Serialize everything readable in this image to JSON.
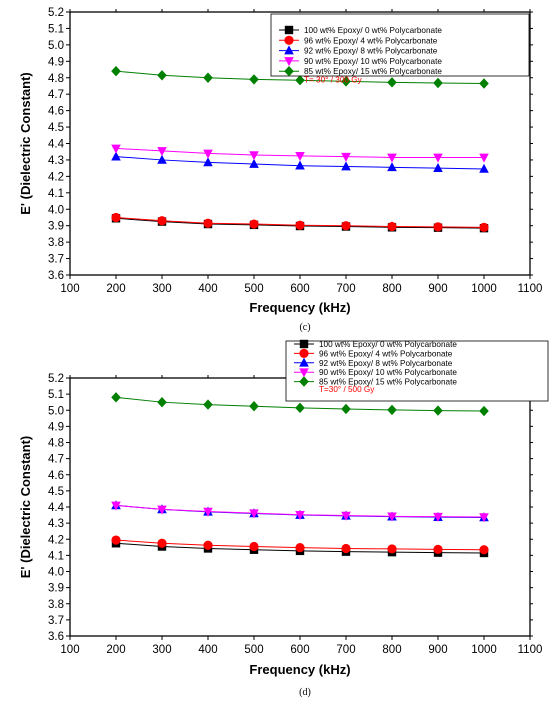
{
  "chart_data": [
    {
      "type": "line",
      "panel_label": "(c)",
      "xlabel": "Frequency (kHz)",
      "ylabel": "E' (Dielectric Constant)",
      "xlim": [
        100,
        1100
      ],
      "ylim": [
        3.6,
        5.2
      ],
      "xticks": [
        "100",
        "200",
        "300",
        "400",
        "500",
        "600",
        "700",
        "800",
        "900",
        "1000",
        "1100"
      ],
      "yticks": [
        "3.6",
        "3.7",
        "3.8",
        "3.9",
        "4.0",
        "4.1",
        "4.2",
        "4.3",
        "4.4",
        "4.5",
        "4.6",
        "4.7",
        "4.8",
        "4.9",
        "5.0",
        "5.1",
        "5.2"
      ],
      "annotation": "T= 30° / 300 Gy",
      "legend_position": "top-right",
      "grid": false,
      "x": [
        200,
        300,
        400,
        500,
        600,
        700,
        800,
        900,
        1000
      ],
      "series": [
        {
          "name": "100 wt% Epoxy/ 0 wt% Polycarbonate",
          "color": "#000000",
          "marker": "square",
          "values": [
            3.945,
            3.925,
            3.91,
            3.905,
            3.898,
            3.895,
            3.89,
            3.888,
            3.885
          ]
        },
        {
          "name": "96 wt% Epoxy/ 4 wt% Polycarbonate",
          "color": "#ff0000",
          "marker": "circle",
          "values": [
            3.95,
            3.93,
            3.915,
            3.91,
            3.903,
            3.9,
            3.895,
            3.893,
            3.89
          ]
        },
        {
          "name": "92 wt% Epoxy/ 8 wt% Polycarbonate",
          "color": "#0000ff",
          "marker": "triangle-up",
          "values": [
            4.32,
            4.3,
            4.285,
            4.275,
            4.265,
            4.26,
            4.255,
            4.25,
            4.245
          ]
        },
        {
          "name": "90 wt% Epoxy/ 10 wt% Polycarbonate",
          "color": "#ff00ff",
          "marker": "triangle-down",
          "values": [
            4.37,
            4.355,
            4.34,
            4.33,
            4.325,
            4.32,
            4.315,
            4.315,
            4.315
          ]
        },
        {
          "name": "85 wt% Epoxy/ 15 wt% Polycarbonate",
          "color": "#008000",
          "marker": "diamond",
          "values": [
            4.84,
            4.815,
            4.8,
            4.79,
            4.785,
            4.778,
            4.772,
            4.768,
            4.765
          ]
        }
      ]
    },
    {
      "type": "line",
      "panel_label": "(d)",
      "xlabel": "Frequency (kHz)",
      "ylabel": "E' (Dielectric Constant)",
      "xlim": [
        100,
        1100
      ],
      "ylim": [
        3.6,
        5.2
      ],
      "xticks": [
        "100",
        "200",
        "300",
        "400",
        "500",
        "600",
        "700",
        "800",
        "900",
        "1000",
        "1100"
      ],
      "yticks": [
        "3.6",
        "3.7",
        "3.8",
        "3.9",
        "4.0",
        "4.1",
        "4.2",
        "4.3",
        "4.4",
        "4.5",
        "4.6",
        "4.7",
        "4.8",
        "4.9",
        "5.0",
        "5.1",
        "5.2"
      ],
      "annotation": "T=30° / 500 Gy",
      "legend_position": "top-right",
      "grid": false,
      "x": [
        200,
        300,
        400,
        500,
        600,
        700,
        800,
        900,
        1000
      ],
      "series": [
        {
          "name": "100 wt% Epoxy/ 0 wt% Polycarbonate",
          "color": "#000000",
          "marker": "square",
          "values": [
            4.175,
            4.155,
            4.143,
            4.135,
            4.128,
            4.123,
            4.12,
            4.117,
            4.115
          ]
        },
        {
          "name": "96 wt% Epoxy/ 4 wt% Polycarbonate",
          "color": "#ff0000",
          "marker": "circle",
          "values": [
            4.195,
            4.175,
            4.163,
            4.155,
            4.148,
            4.143,
            4.14,
            4.137,
            4.135
          ]
        },
        {
          "name": "92 wt% Epoxy/ 8 wt% Polycarbonate",
          "color": "#0000ff",
          "marker": "triangle-up",
          "values": [
            4.41,
            4.385,
            4.37,
            4.36,
            4.35,
            4.345,
            4.34,
            4.337,
            4.335
          ]
        },
        {
          "name": "90 wt% Epoxy/ 10 wt% Polycarbonate",
          "color": "#ff00ff",
          "marker": "triangle-down",
          "values": [
            4.41,
            4.385,
            4.372,
            4.362,
            4.352,
            4.347,
            4.342,
            4.34,
            4.338
          ]
        },
        {
          "name": "85 wt% Epoxy/ 15 wt% Polycarbonate",
          "color": "#008000",
          "marker": "diamond",
          "values": [
            5.08,
            5.05,
            5.035,
            5.025,
            5.015,
            5.008,
            5.002,
            4.998,
            4.995
          ]
        }
      ]
    }
  ]
}
